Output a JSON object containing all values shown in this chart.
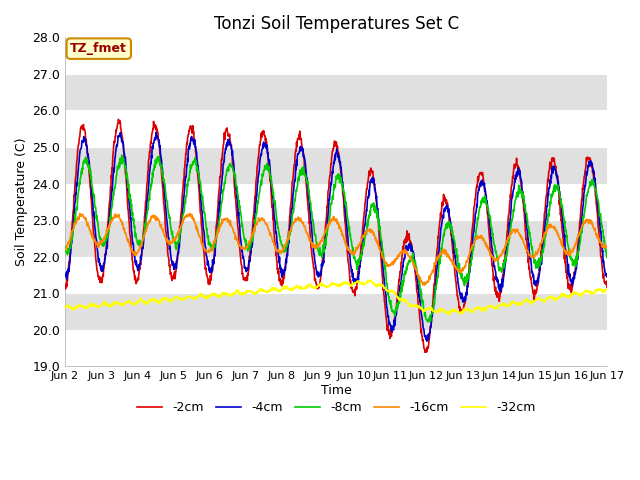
{
  "title": "Tonzi Soil Temperatures Set C",
  "xlabel": "Time",
  "ylabel": "Soil Temperature (C)",
  "ylim": [
    19.0,
    28.0
  ],
  "yticks": [
    19.0,
    20.0,
    21.0,
    22.0,
    23.0,
    24.0,
    25.0,
    26.0,
    27.0,
    28.0
  ],
  "xtick_labels": [
    "Jun 2",
    "Jun 3",
    "Jun 4",
    "Jun 5",
    "Jun 6",
    "Jun 7",
    "Jun 8",
    "Jun 9",
    "Jun 10",
    "Jun 11",
    "Jun 12",
    "Jun 13",
    "Jun 14",
    "Jun 15",
    "Jun 16",
    "Jun 17"
  ],
  "colors": {
    "-2cm": "#dd0000",
    "-4cm": "#0000cc",
    "-8cm": "#00cc00",
    "-16cm": "#ff8800",
    "-32cm": "#ffff00"
  },
  "annotation_text": "TZ_fmet",
  "annotation_bg": "#ffffcc",
  "annotation_border": "#cc8800",
  "bg_band_color": "#e0e0e0",
  "bg_white": "#ffffff",
  "fig_bg": "#ffffff"
}
